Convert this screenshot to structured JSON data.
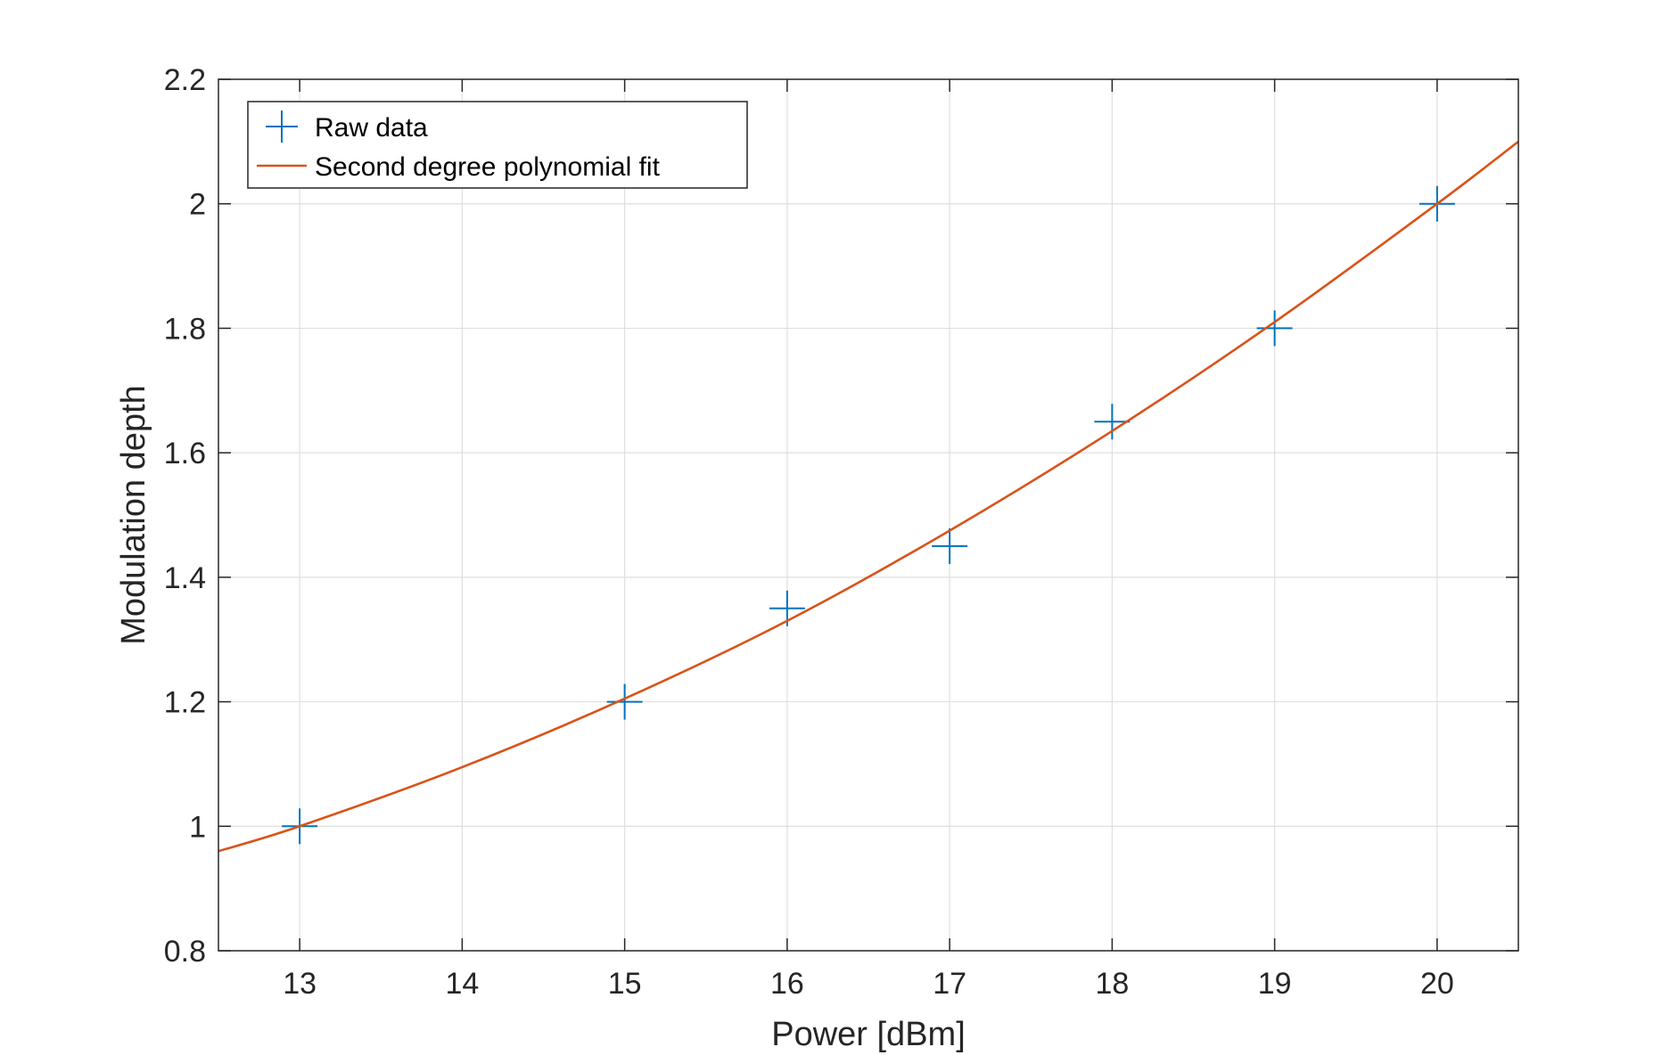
{
  "chart_data": {
    "type": "scatter",
    "title": "",
    "xlabel": "Power [dBm]",
    "ylabel": "Modulation depth",
    "xlim": [
      12.5,
      20.5
    ],
    "ylim": [
      0.8,
      2.2
    ],
    "xticks": [
      13,
      14,
      15,
      16,
      17,
      18,
      19,
      20
    ],
    "yticks": [
      0.8,
      1,
      1.2,
      1.4,
      1.6,
      1.8,
      2,
      2.2
    ],
    "xtick_labels": [
      "13",
      "14",
      "15",
      "16",
      "17",
      "18",
      "19",
      "20"
    ],
    "ytick_labels": [
      "0.8",
      "1",
      "1.2",
      "1.4",
      "1.6",
      "1.8",
      "2",
      "2.2"
    ],
    "grid": true,
    "legend_position": "top-left",
    "series": [
      {
        "name": "Raw data",
        "kind": "markers",
        "marker": "plus",
        "color": "#0072BD",
        "x": [
          13,
          15,
          16,
          17,
          18,
          19,
          20
        ],
        "y": [
          1.0,
          1.2,
          1.35,
          1.45,
          1.65,
          1.8,
          2.0
        ]
      },
      {
        "name": "Second degree polynomial fit",
        "kind": "line",
        "color": "#D95319",
        "x": [
          12.5,
          13,
          14,
          15,
          16,
          17,
          18,
          19,
          20,
          20.5
        ],
        "y": [
          0.96,
          1.0,
          1.095,
          1.205,
          1.33,
          1.475,
          1.635,
          1.81,
          2.0,
          2.1
        ]
      }
    ]
  }
}
